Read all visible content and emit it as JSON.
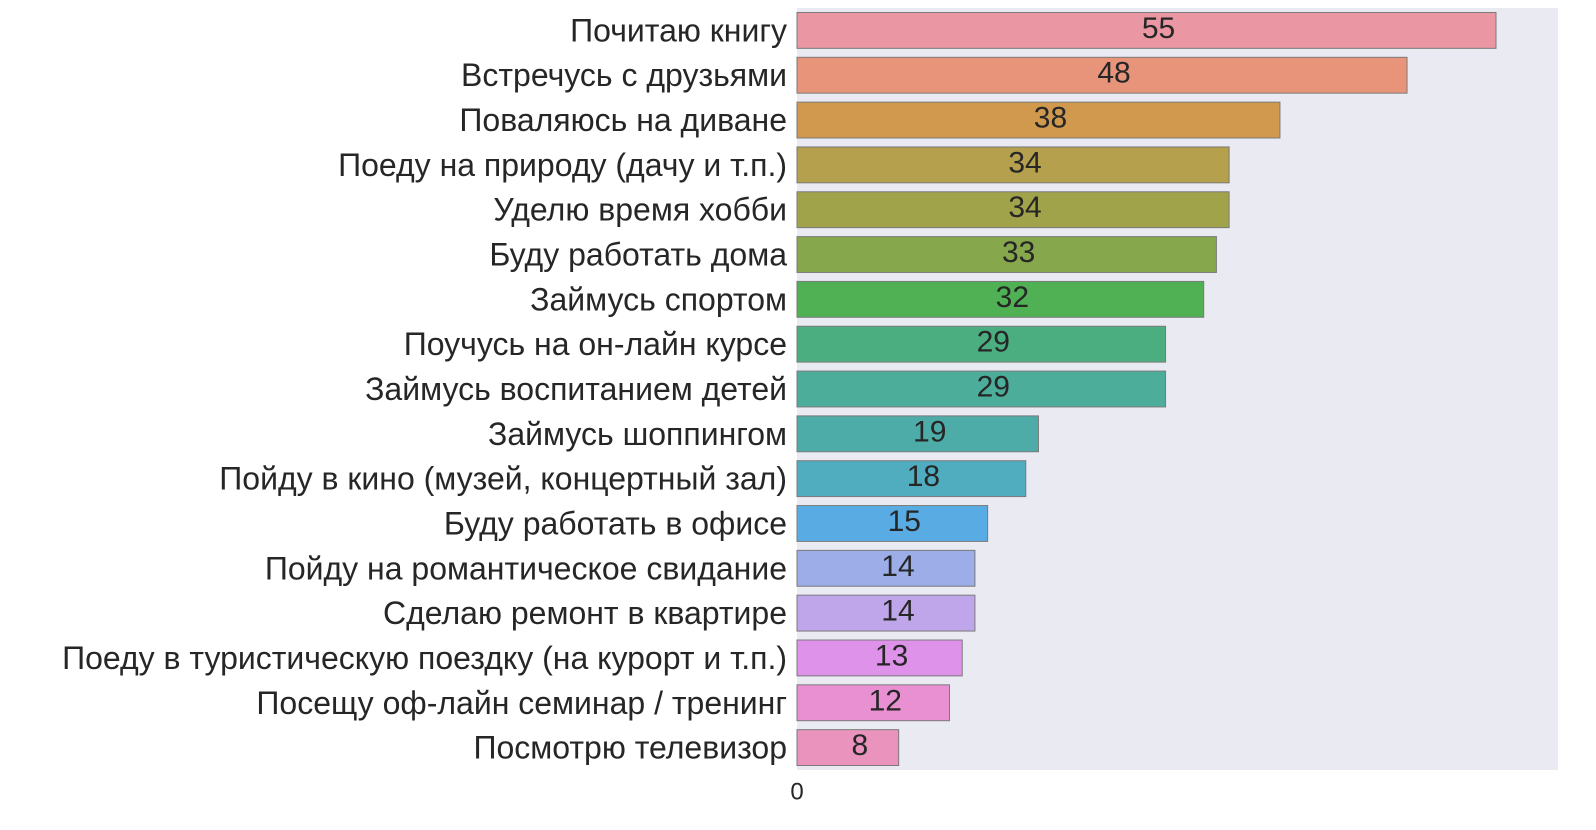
{
  "chart_data": {
    "type": "bar",
    "orientation": "horizontal",
    "categories": [
      "Почитаю книгу",
      "Встречусь с друзьями",
      "Поваляюсь на диване",
      "Поеду на природу (дачу и т.п.)",
      "Уделю время хобби",
      "Буду работать дома",
      "Займусь спортом",
      "Поучусь на он-лайн курсе",
      "Займусь воспитанием детей",
      "Займусь шоппингом",
      "Пойду в кино (музей, концертный зал)",
      "Буду работать в офисе",
      "Пойду на романтическое свидание",
      "Сделаю ремонт в квартире",
      "Поеду в туристическую поездку (на курорт и т.п.)",
      "Посещу оф-лайн семинар / тренинг",
      "Посмотрю телевизор"
    ],
    "values": [
      55,
      48,
      38,
      34,
      34,
      33,
      32,
      29,
      29,
      19,
      18,
      15,
      14,
      14,
      13,
      12,
      8
    ],
    "colors": [
      "#ea96a3",
      "#e8947a",
      "#d0994d",
      "#b4a04d",
      "#a1a34a",
      "#86a74b",
      "#4fb054",
      "#4bae80",
      "#4bad9a",
      "#4daca8",
      "#4fadbf",
      "#58ace3",
      "#9cade8",
      "#bfa6ea",
      "#de92ea",
      "#e990d3",
      "#ea93bd"
    ],
    "xticks": [
      0
    ],
    "xlim": [
      0,
      60
    ],
    "title": "",
    "xlabel": "",
    "ylabel": "",
    "grid": false,
    "background": "#eaeaf2"
  }
}
